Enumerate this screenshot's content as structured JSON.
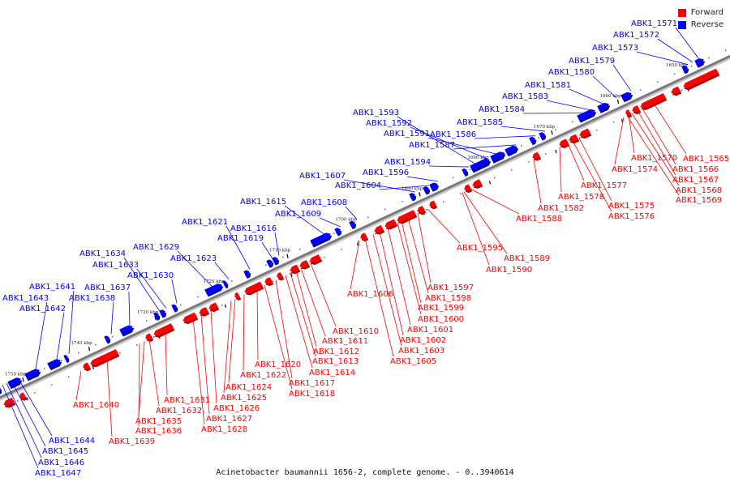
{
  "legend": {
    "forward_label": "Forward",
    "reverse_label": "Reverse",
    "forward_color": "#ff0000",
    "reverse_color": "#0000ff"
  },
  "caption": "Acinetobacter baumannii 1656-2, complete genome. - 0..3940614",
  "scale": {
    "unit": "kbp",
    "ticks": [
      1650,
      1660,
      1670,
      1680,
      1690,
      1700,
      1710,
      1720,
      1730,
      1740,
      1750
    ]
  },
  "reverse_labels": [
    "ABK1_1571",
    "ABK1_1572",
    "ABK1_1573",
    "ABK1_1579",
    "ABK1_1580",
    "ABK1_1581",
    "ABK1_1583",
    "ABK1_1584",
    "ABK1_1585",
    "ABK1_1586",
    "ABK1_1587",
    "ABK1_1591",
    "ABK1_1592",
    "ABK1_1593",
    "ABK1_1594",
    "ABK1_1596",
    "ABK1_1604",
    "ABK1_1607",
    "ABK1_1608",
    "ABK1_1609",
    "ABK1_1615",
    "ABK1_1616",
    "ABK1_1619",
    "ABK1_1621",
    "ABK1_1623",
    "ABK1_1629",
    "ABK1_1630",
    "ABK1_1633",
    "ABK1_1634",
    "ABK1_1637",
    "ABK1_1638",
    "ABK1_1641",
    "ABK1_1642",
    "ABK1_1643",
    "ABK1_1644",
    "ABK1_1645",
    "ABK1_1646",
    "ABK1_1647"
  ],
  "forward_labels": [
    "ABK1_1565",
    "ABK1_1566",
    "ABK1_1567",
    "ABK1_1568",
    "ABK1_1569",
    "ABK1_1570",
    "ABK1_1574",
    "ABK1_1575",
    "ABK1_1576",
    "ABK1_1577",
    "ABK1_1578",
    "ABK1_1582",
    "ABK1_1588",
    "ABK1_1589",
    "ABK1_1590",
    "ABK1_1595",
    "ABK1_1597",
    "ABK1_1598",
    "ABK1_1599",
    "ABK1_1600",
    "ABK1_1601",
    "ABK1_1602",
    "ABK1_1603",
    "ABK1_1605",
    "ABK1_1606",
    "ABK1_1610",
    "ABK1_1611",
    "ABK1_1612",
    "ABK1_1613",
    "ABK1_1614",
    "ABK1_1617",
    "ABK1_1618",
    "ABK1_1620",
    "ABK1_1622",
    "ABK1_1624",
    "ABK1_1625",
    "ABK1_1626",
    "ABK1_1627",
    "ABK1_1628",
    "ABK1_1631",
    "ABK1_1632",
    "ABK1_1635",
    "ABK1_1636",
    "ABK1_1639",
    "ABK1_1640"
  ]
}
